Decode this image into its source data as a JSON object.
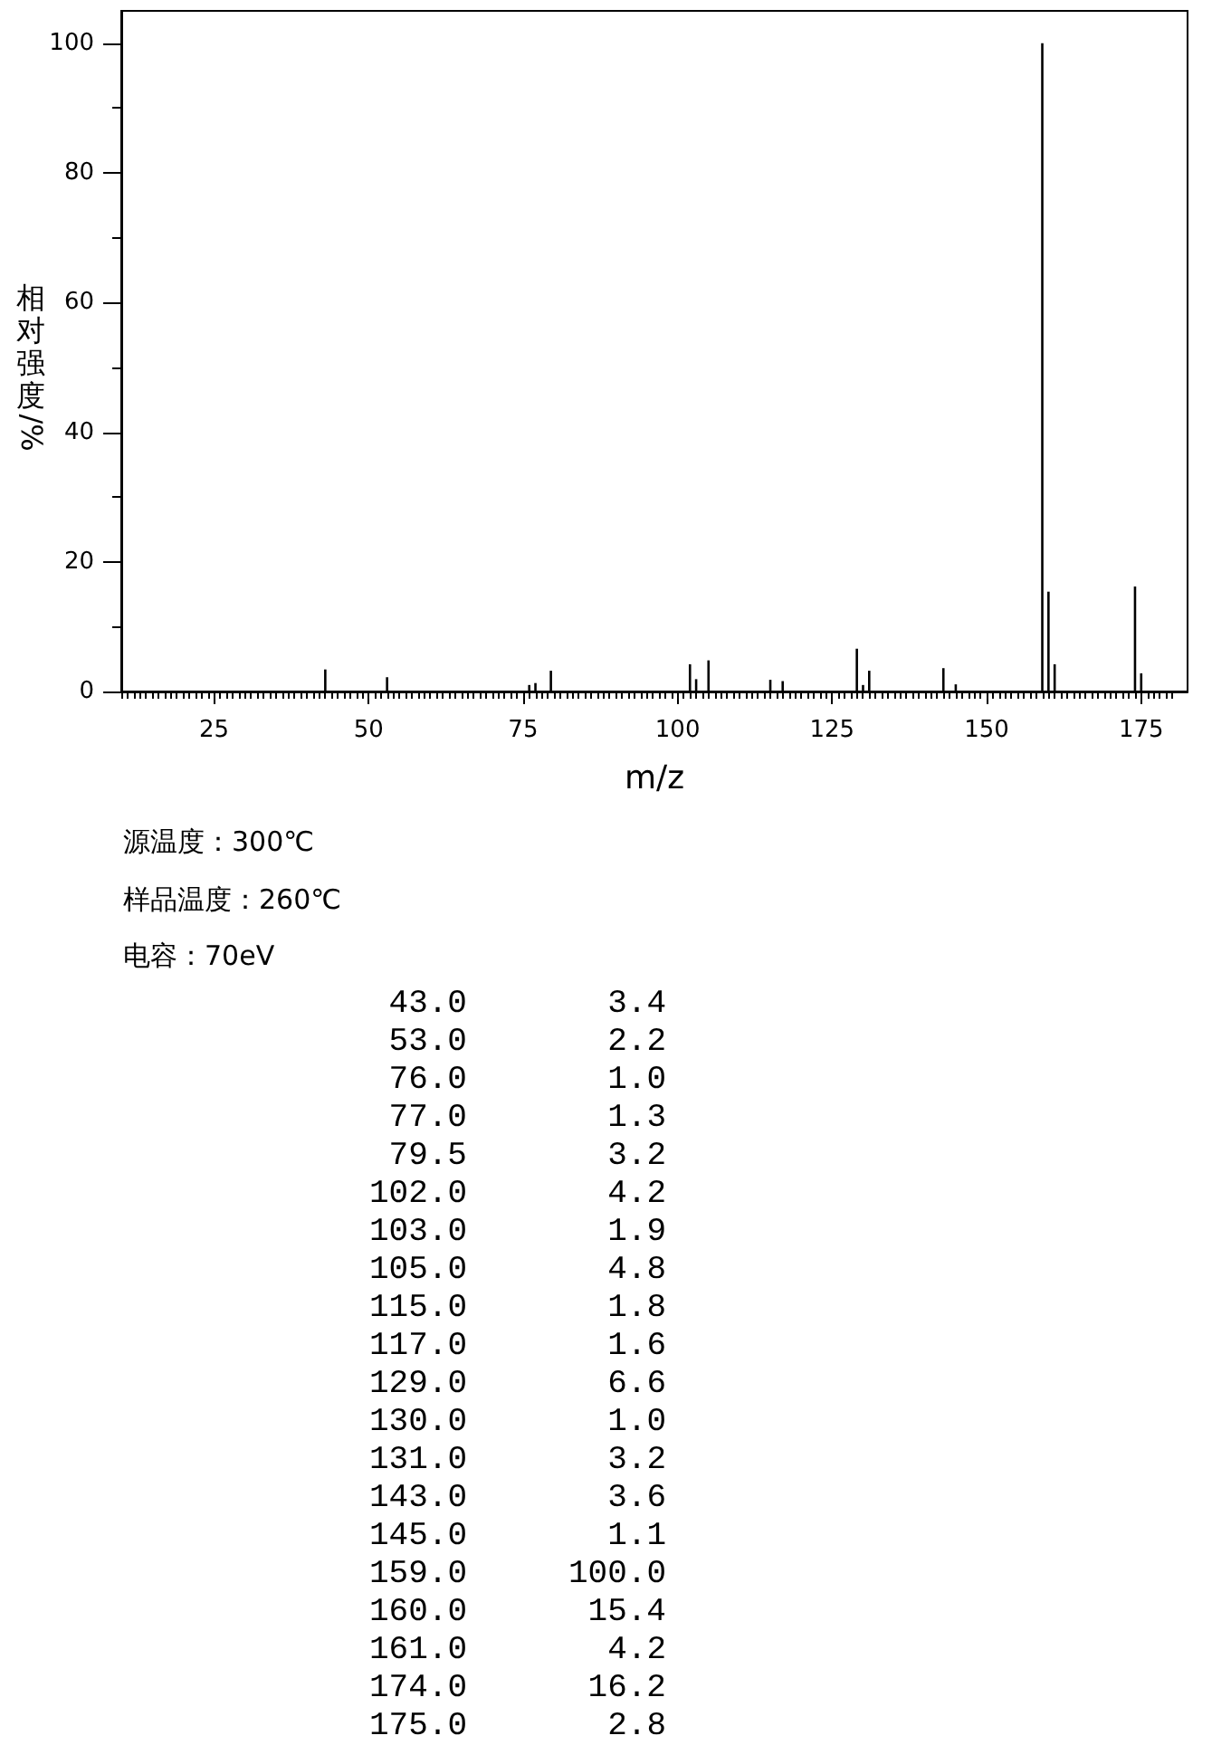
{
  "chart_data": [
    {
      "type": "bar",
      "xlabel": "m/z",
      "ylabel": "相对强度/%",
      "x": [
        43,
        53,
        76,
        77,
        79.5,
        102,
        103,
        105,
        115,
        117,
        129,
        130,
        131,
        143,
        145,
        159,
        160,
        161,
        174,
        175
      ],
      "values": [
        3.4,
        2.2,
        1.0,
        1.3,
        3.2,
        4.2,
        1.9,
        4.8,
        1.8,
        1.6,
        6.6,
        1.0,
        3.2,
        3.6,
        1.1,
        100.0,
        15.4,
        4.2,
        16.2,
        2.8
      ],
      "color": "#000000",
      "xlim": [
        10,
        182.5
      ],
      "xticks": [
        {
          "value": 10,
          "label": null
        },
        {
          "value": 11,
          "label": null
        },
        {
          "value": 12,
          "label": null
        },
        {
          "value": 13,
          "label": null
        },
        {
          "value": 14,
          "label": null
        },
        {
          "value": 15,
          "label": null
        },
        {
          "value": 16,
          "label": null
        },
        {
          "value": 17,
          "label": null
        },
        {
          "value": 18,
          "label": null
        },
        {
          "value": 19,
          "label": null
        },
        {
          "value": 20,
          "label": null
        },
        {
          "value": 21,
          "label": null
        },
        {
          "value": 22,
          "label": null
        },
        {
          "value": 23,
          "label": null
        },
        {
          "value": 24,
          "label": null
        },
        25,
        {
          "value": 26,
          "label": null
        },
        {
          "value": 27,
          "label": null
        },
        {
          "value": 28,
          "label": null
        },
        {
          "value": 29,
          "label": null
        },
        {
          "value": 30,
          "label": null
        },
        {
          "value": 31,
          "label": null
        },
        {
          "value": 32,
          "label": null
        },
        {
          "value": 33,
          "label": null
        },
        {
          "value": 34,
          "label": null
        },
        {
          "value": 35,
          "label": null
        },
        {
          "value": 36,
          "label": null
        },
        {
          "value": 37,
          "label": null
        },
        {
          "value": 38,
          "label": null
        },
        {
          "value": 39,
          "label": null
        },
        {
          "value": 40,
          "label": null
        },
        {
          "value": 41,
          "label": null
        },
        {
          "value": 42,
          "label": null
        },
        {
          "value": 43,
          "label": null
        },
        {
          "value": 44,
          "label": null
        },
        {
          "value": 45,
          "label": null
        },
        {
          "value": 46,
          "label": null
        },
        {
          "value": 47,
          "label": null
        },
        {
          "value": 48,
          "label": null
        },
        {
          "value": 49,
          "label": null
        },
        50,
        {
          "value": 51,
          "label": null
        },
        {
          "value": 52,
          "label": null
        },
        {
          "value": 53,
          "label": null
        },
        {
          "value": 54,
          "label": null
        },
        {
          "value": 55,
          "label": null
        },
        {
          "value": 56,
          "label": null
        },
        {
          "value": 57,
          "label": null
        },
        {
          "value": 58,
          "label": null
        },
        {
          "value": 59,
          "label": null
        },
        {
          "value": 60,
          "label": null
        },
        {
          "value": 61,
          "label": null
        },
        {
          "value": 62,
          "label": null
        },
        {
          "value": 63,
          "label": null
        },
        {
          "value": 64,
          "label": null
        },
        {
          "value": 65,
          "label": null
        },
        {
          "value": 66,
          "label": null
        },
        {
          "value": 67,
          "label": null
        },
        {
          "value": 68,
          "label": null
        },
        {
          "value": 69,
          "label": null
        },
        {
          "value": 70,
          "label": null
        },
        {
          "value": 71,
          "label": null
        },
        {
          "value": 72,
          "label": null
        },
        {
          "value": 73,
          "label": null
        },
        {
          "value": 74,
          "label": null
        },
        75,
        {
          "value": 76,
          "label": null
        },
        {
          "value": 77,
          "label": null
        },
        {
          "value": 78,
          "label": null
        },
        {
          "value": 79,
          "label": null
        },
        {
          "value": 80,
          "label": null
        },
        {
          "value": 81,
          "label": null
        },
        {
          "value": 82,
          "label": null
        },
        {
          "value": 83,
          "label": null
        },
        {
          "value": 84,
          "label": null
        },
        {
          "value": 85,
          "label": null
        },
        {
          "value": 86,
          "label": null
        },
        {
          "value": 87,
          "label": null
        },
        {
          "value": 88,
          "label": null
        },
        {
          "value": 89,
          "label": null
        },
        {
          "value": 90,
          "label": null
        },
        {
          "value": 91,
          "label": null
        },
        {
          "value": 92,
          "label": null
        },
        {
          "value": 93,
          "label": null
        },
        {
          "value": 94,
          "label": null
        },
        {
          "value": 95,
          "label": null
        },
        {
          "value": 96,
          "label": null
        },
        {
          "value": 97,
          "label": null
        },
        {
          "value": 98,
          "label": null
        },
        {
          "value": 99,
          "label": null
        },
        100,
        {
          "value": 101,
          "label": null
        },
        {
          "value": 102,
          "label": null
        },
        {
          "value": 103,
          "label": null
        },
        {
          "value": 104,
          "label": null
        },
        {
          "value": 105,
          "label": null
        },
        {
          "value": 106,
          "label": null
        },
        {
          "value": 107,
          "label": null
        },
        {
          "value": 108,
          "label": null
        },
        {
          "value": 109,
          "label": null
        },
        {
          "value": 110,
          "label": null
        },
        {
          "value": 111,
          "label": null
        },
        {
          "value": 112,
          "label": null
        },
        {
          "value": 113,
          "label": null
        },
        {
          "value": 114,
          "label": null
        },
        {
          "value": 115,
          "label": null
        },
        {
          "value": 116,
          "label": null
        },
        {
          "value": 117,
          "label": null
        },
        {
          "value": 118,
          "label": null
        },
        {
          "value": 119,
          "label": null
        },
        {
          "value": 120,
          "label": null
        },
        {
          "value": 121,
          "label": null
        },
        {
          "value": 122,
          "label": null
        },
        {
          "value": 123,
          "label": null
        },
        {
          "value": 124,
          "label": null
        },
        125,
        {
          "value": 126,
          "label": null
        },
        {
          "value": 127,
          "label": null
        },
        {
          "value": 128,
          "label": null
        },
        {
          "value": 129,
          "label": null
        },
        {
          "value": 130,
          "label": null
        },
        {
          "value": 131,
          "label": null
        },
        {
          "value": 132,
          "label": null
        },
        {
          "value": 133,
          "label": null
        },
        {
          "value": 134,
          "label": null
        },
        {
          "value": 135,
          "label": null
        },
        {
          "value": 136,
          "label": null
        },
        {
          "value": 137,
          "label": null
        },
        {
          "value": 138,
          "label": null
        },
        {
          "value": 139,
          "label": null
        },
        {
          "value": 140,
          "label": null
        },
        {
          "value": 141,
          "label": null
        },
        {
          "value": 142,
          "label": null
        },
        {
          "value": 143,
          "label": null
        },
        {
          "value": 144,
          "label": null
        },
        {
          "value": 145,
          "label": null
        },
        {
          "value": 146,
          "label": null
        },
        {
          "value": 147,
          "label": null
        },
        {
          "value": 148,
          "label": null
        },
        {
          "value": 149,
          "label": null
        },
        150,
        {
          "value": 151,
          "label": null
        },
        {
          "value": 152,
          "label": null
        },
        {
          "value": 153,
          "label": null
        },
        {
          "value": 154,
          "label": null
        },
        {
          "value": 155,
          "label": null
        },
        {
          "value": 156,
          "label": null
        },
        {
          "value": 157,
          "label": null
        },
        {
          "value": 158,
          "label": null
        },
        {
          "value": 159,
          "label": null
        },
        {
          "value": 160,
          "label": null
        },
        {
          "value": 161,
          "label": null
        },
        {
          "value": 162,
          "label": null
        },
        {
          "value": 163,
          "label": null
        },
        {
          "value": 164,
          "label": null
        },
        {
          "value": 165,
          "label": null
        },
        {
          "value": 166,
          "label": null
        },
        {
          "value": 167,
          "label": null
        },
        {
          "value": 168,
          "label": null
        },
        {
          "value": 169,
          "label": null
        },
        {
          "value": 170,
          "label": null
        },
        {
          "value": 171,
          "label": null
        },
        {
          "value": 172,
          "label": null
        },
        {
          "value": 173,
          "label": null
        },
        {
          "value": 174,
          "label": null
        },
        175,
        {
          "value": 176,
          "label": null
        },
        {
          "value": 177,
          "label": null
        },
        {
          "value": 178,
          "label": null
        },
        {
          "value": 179,
          "label": null
        },
        {
          "value": 180,
          "label": null
        }
      ],
      "ylim": [
        0,
        105
      ],
      "yticks": [
        0,
        {
          "value": 10,
          "label": null
        },
        20,
        {
          "value": 30,
          "label": null
        },
        40,
        {
          "value": 50,
          "label": null
        },
        60,
        {
          "value": 70,
          "label": null
        },
        80,
        {
          "value": 90,
          "label": null
        },
        100
      ],
      "annotations": [
        "源温度：300℃",
        "样品温度：260℃",
        "电容：70eV"
      ]
    },
    {
      "type": "other",
      "categories": [
        "43.0",
        "53.0",
        "76.0",
        "77.0",
        "79.5",
        "102.0",
        "103.0",
        "105.0",
        "115.0",
        "117.0",
        "129.0",
        "130.0",
        "131.0",
        "143.0",
        "145.0",
        "159.0",
        "160.0",
        "161.0",
        "174.0",
        "175.0"
      ],
      "value_labels": [
        "3.4",
        "2.2",
        "1.0",
        "1.3",
        "3.2",
        "4.2",
        "1.9",
        "4.8",
        "1.8",
        "1.6",
        "6.6",
        "1.0",
        "3.2",
        "3.6",
        "1.1",
        "100.0",
        "15.4",
        "4.2",
        "16.2",
        "2.8"
      ]
    }
  ]
}
